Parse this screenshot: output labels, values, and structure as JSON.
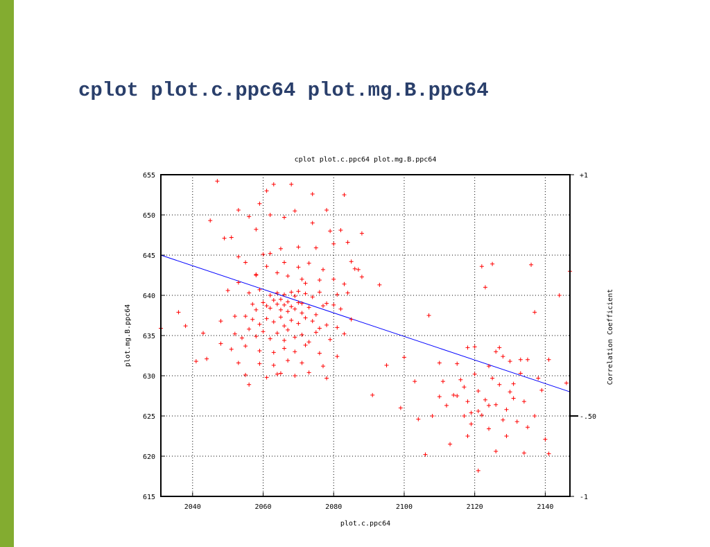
{
  "slide": {
    "title": "cplot plot.c.ppc64 plot.mg.B.ppc64",
    "accent_color": "#83ac30",
    "title_color": "#2a3f6b"
  },
  "chart_data": {
    "type": "scatter",
    "title": "cplot plot.c.ppc64 plot.mg.B.ppc64",
    "xlabel": "plot.c.ppc64",
    "ylabel": "plot.mg.B.ppc64",
    "y2label": "Correlation Coefficient",
    "xlim": [
      2031,
      2147
    ],
    "ylim": [
      615,
      655
    ],
    "y2lim": [
      -1,
      1
    ],
    "x_ticks": [
      2040,
      2060,
      2080,
      2100,
      2120,
      2140
    ],
    "y_ticks": [
      615,
      620,
      625,
      630,
      635,
      640,
      645,
      650,
      655
    ],
    "y2_ticks": [
      {
        "value": 1,
        "label": "+1"
      },
      {
        "value": -0.5,
        "label": "-.50"
      },
      {
        "value": -1,
        "label": "-1"
      }
    ],
    "correlation": -0.5,
    "grid": true,
    "point_color": "#ff0000",
    "fit_color": "#0000ff",
    "fit_line": {
      "x": [
        2031,
        2147
      ],
      "y": [
        645,
        628
      ]
    },
    "series": [
      {
        "points": [
          [
            2047,
            654.2
          ],
          [
            2059,
            651.4
          ],
          [
            2061,
            653.0
          ],
          [
            2063,
            653.8
          ],
          [
            2068,
            653.8
          ],
          [
            2074,
            652.6
          ],
          [
            2078,
            650.6
          ],
          [
            2083,
            652.5
          ],
          [
            2045,
            649.3
          ],
          [
            2053,
            650.6
          ],
          [
            2056,
            649.8
          ],
          [
            2058,
            648.2
          ],
          [
            2062,
            650.0
          ],
          [
            2066,
            649.7
          ],
          [
            2069,
            650.5
          ],
          [
            2074,
            649.0
          ],
          [
            2079,
            648.0
          ],
          [
            2082,
            648.1
          ],
          [
            2084,
            646.6
          ],
          [
            2088,
            647.7
          ],
          [
            2049,
            647.1
          ],
          [
            2051,
            647.2
          ],
          [
            2053,
            644.8
          ],
          [
            2055,
            644.1
          ],
          [
            2060,
            645.1
          ],
          [
            2065,
            645.8
          ],
          [
            2070,
            646.0
          ],
          [
            2075,
            645.9
          ],
          [
            2080,
            646.4
          ],
          [
            2085,
            644.2
          ],
          [
            2087,
            643.2
          ],
          [
            2058,
            642.5
          ],
          [
            2061,
            643.6
          ],
          [
            2064,
            642.8
          ],
          [
            2067,
            642.4
          ],
          [
            2071,
            642.0
          ],
          [
            2073,
            644.0
          ],
          [
            2076,
            641.9
          ],
          [
            2080,
            642.0
          ],
          [
            2083,
            641.4
          ],
          [
            2088,
            642.3
          ],
          [
            2050,
            640.6
          ],
          [
            2053,
            641.6
          ],
          [
            2056,
            640.3
          ],
          [
            2059,
            640.7
          ],
          [
            2062,
            640.0
          ],
          [
            2064,
            640.3
          ],
          [
            2065,
            639.5
          ],
          [
            2066,
            640.1
          ],
          [
            2067,
            639.2
          ],
          [
            2068,
            640.4
          ],
          [
            2069,
            639.9
          ],
          [
            2070,
            640.5
          ],
          [
            2071,
            639.0
          ],
          [
            2072,
            640.2
          ],
          [
            2074,
            639.8
          ],
          [
            2076,
            640.4
          ],
          [
            2078,
            639.0
          ],
          [
            2081,
            640.1
          ],
          [
            2084,
            640.3
          ],
          [
            2057,
            638.9
          ],
          [
            2058,
            638.2
          ],
          [
            2060,
            639.1
          ],
          [
            2061,
            638.7
          ],
          [
            2062,
            638.4
          ],
          [
            2063,
            639.4
          ],
          [
            2064,
            638.9
          ],
          [
            2065,
            638.2
          ],
          [
            2066,
            638.8
          ],
          [
            2067,
            638.0
          ],
          [
            2068,
            638.6
          ],
          [
            2069,
            638.3
          ],
          [
            2070,
            639.1
          ],
          [
            2071,
            637.8
          ],
          [
            2073,
            638.5
          ],
          [
            2075,
            637.6
          ],
          [
            2077,
            638.7
          ],
          [
            2080,
            638.8
          ],
          [
            2082,
            638.3
          ],
          [
            2055,
            637.4
          ],
          [
            2057,
            637.0
          ],
          [
            2059,
            636.4
          ],
          [
            2061,
            637.1
          ],
          [
            2063,
            636.7
          ],
          [
            2065,
            637.3
          ],
          [
            2066,
            636.2
          ],
          [
            2068,
            636.9
          ],
          [
            2070,
            636.5
          ],
          [
            2072,
            637.2
          ],
          [
            2074,
            636.8
          ],
          [
            2076,
            635.9
          ],
          [
            2078,
            636.3
          ],
          [
            2081,
            636.0
          ],
          [
            2085,
            637.0
          ],
          [
            2052,
            635.2
          ],
          [
            2054,
            634.7
          ],
          [
            2056,
            635.8
          ],
          [
            2058,
            634.9
          ],
          [
            2060,
            635.5
          ],
          [
            2062,
            634.6
          ],
          [
            2064,
            635.3
          ],
          [
            2066,
            634.4
          ],
          [
            2067,
            635.7
          ],
          [
            2069,
            634.8
          ],
          [
            2071,
            635.1
          ],
          [
            2073,
            634.2
          ],
          [
            2075,
            635.4
          ],
          [
            2079,
            634.5
          ],
          [
            2083,
            635.2
          ],
          [
            2048,
            634.0
          ],
          [
            2051,
            633.3
          ],
          [
            2055,
            633.7
          ],
          [
            2059,
            633.1
          ],
          [
            2063,
            632.9
          ],
          [
            2066,
            633.4
          ],
          [
            2069,
            633.0
          ],
          [
            2072,
            633.8
          ],
          [
            2076,
            632.8
          ],
          [
            2081,
            632.4
          ],
          [
            2041,
            631.8
          ],
          [
            2044,
            632.1
          ],
          [
            2053,
            631.6
          ],
          [
            2059,
            631.5
          ],
          [
            2063,
            631.3
          ],
          [
            2067,
            631.9
          ],
          [
            2071,
            631.6
          ],
          [
            2077,
            631.2
          ],
          [
            2055,
            630.1
          ],
          [
            2061,
            629.8
          ],
          [
            2065,
            630.3
          ],
          [
            2069,
            630.0
          ],
          [
            2073,
            630.4
          ],
          [
            2078,
            629.7
          ],
          [
            2056,
            628.9
          ],
          [
            2064,
            630.2
          ],
          [
            2031,
            635.9
          ],
          [
            2036,
            637.9
          ],
          [
            2038,
            636.2
          ],
          [
            2043,
            635.3
          ],
          [
            2048,
            636.8
          ],
          [
            2052,
            637.4
          ],
          [
            2058,
            642.6
          ],
          [
            2062,
            645.2
          ],
          [
            2066,
            644.1
          ],
          [
            2070,
            643.5
          ],
          [
            2072,
            641.5
          ],
          [
            2077,
            643.2
          ],
          [
            2086,
            643.3
          ],
          [
            2093,
            641.3
          ],
          [
            2091,
            627.6
          ],
          [
            2095,
            631.3
          ],
          [
            2099,
            626.0
          ],
          [
            2100,
            632.3
          ],
          [
            2103,
            629.3
          ],
          [
            2104,
            624.6
          ],
          [
            2106,
            620.2
          ],
          [
            2107,
            637.5
          ],
          [
            2108,
            625.0
          ],
          [
            2110,
            631.6
          ],
          [
            2111,
            629.3
          ],
          [
            2112,
            626.3
          ],
          [
            2113,
            621.5
          ],
          [
            2114,
            627.6
          ],
          [
            2115,
            631.5
          ],
          [
            2116,
            629.5
          ],
          [
            2117,
            625.0
          ],
          [
            2118,
            622.5
          ],
          [
            2118,
            626.8
          ],
          [
            2119,
            624.0
          ],
          [
            2120,
            630.2
          ],
          [
            2120,
            633.6
          ],
          [
            2121,
            628.1
          ],
          [
            2121,
            618.2
          ],
          [
            2122,
            625.1
          ],
          [
            2122,
            643.6
          ],
          [
            2123,
            641.0
          ],
          [
            2123,
            627.0
          ],
          [
            2124,
            623.4
          ],
          [
            2124,
            631.2
          ],
          [
            2125,
            629.7
          ],
          [
            2125,
            643.9
          ],
          [
            2126,
            626.4
          ],
          [
            2126,
            620.6
          ],
          [
            2127,
            633.5
          ],
          [
            2127,
            628.9
          ],
          [
            2128,
            624.5
          ],
          [
            2128,
            632.4
          ],
          [
            2129,
            622.5
          ],
          [
            2129,
            625.8
          ],
          [
            2130,
            628.0
          ],
          [
            2130,
            631.8
          ],
          [
            2131,
            627.2
          ],
          [
            2132,
            624.3
          ],
          [
            2133,
            630.3
          ],
          [
            2133,
            632.0
          ],
          [
            2134,
            626.8
          ],
          [
            2134,
            620.4
          ],
          [
            2135,
            623.6
          ],
          [
            2136,
            643.8
          ],
          [
            2137,
            625.0
          ],
          [
            2137,
            637.9
          ],
          [
            2138,
            629.7
          ],
          [
            2139,
            628.2
          ],
          [
            2140,
            622.1
          ],
          [
            2141,
            620.3
          ],
          [
            2141,
            632.0
          ],
          [
            2144,
            640.0
          ],
          [
            2146,
            629.1
          ],
          [
            2147,
            643.0
          ],
          [
            2118,
            633.5
          ],
          [
            2115,
            627.5
          ],
          [
            2117,
            628.6
          ],
          [
            2121,
            625.6
          ],
          [
            2126,
            633.0
          ],
          [
            2131,
            629.0
          ],
          [
            2124,
            626.3
          ],
          [
            2110,
            627.4
          ],
          [
            2135,
            632.0
          ],
          [
            2119,
            625.4
          ]
        ]
      }
    ]
  }
}
